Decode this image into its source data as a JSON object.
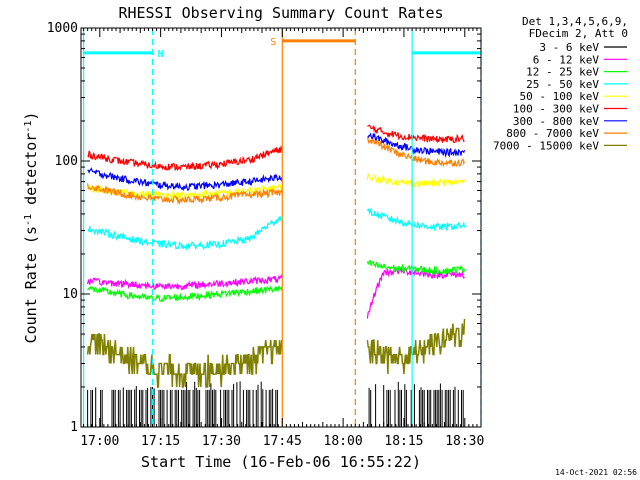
{
  "chart_data": {
    "type": "line",
    "title": "RHESSI Observing Summary Count Rates",
    "xlabel": "Start Time (16-Feb-06 16:55:22)",
    "ylabel_prefix": "Count Rate (s",
    "ylabel_sup1": "-1",
    "ylabel_mid": " detector",
    "ylabel_sup2": "-1",
    "ylabel_suffix": ")",
    "y_scale": "log",
    "ylim": [
      1,
      1000
    ],
    "xlim": [
      "16:55:22",
      "18:34:00"
    ],
    "x_ticks": [
      {
        "label": "17:00",
        "min": 1020
      },
      {
        "label": "17:15",
        "min": 1035
      },
      {
        "label": "17:30",
        "min": 1050
      },
      {
        "label": "17:45",
        "min": 1065
      },
      {
        "label": "18:00",
        "min": 1080
      },
      {
        "label": "18:15",
        "min": 1095
      },
      {
        "label": "18:30",
        "min": 1110
      }
    ],
    "y_ticks": [
      "1",
      "10",
      "100",
      "1000"
    ],
    "footer": "14-Oct-2021 02:56",
    "legend_header": [
      "Det 1,3,4,5,6,9,",
      "FDecim 2, Att 0"
    ],
    "series": [
      {
        "name": "3 - 6 keV",
        "color": "#000000",
        "style": "bars",
        "segments": [
          [
            1017,
            1064,
            1.3,
            1.9
          ],
          [
            1086,
            1110,
            1.3,
            1.9
          ]
        ]
      },
      {
        "name": "6 - 12 keV",
        "color": "#ff00ff",
        "segments": [
          [
            1017,
            1065,
            [
              12.5,
              12,
              11.5,
              11.5,
              12,
              12.5,
              13
            ]
          ],
          [
            1086,
            1110,
            [
              6.5,
              14.5,
              15,
              14.5,
              14,
              14,
              14
            ]
          ]
        ]
      },
      {
        "name": "12 - 25 keV",
        "color": "#00ff00",
        "segments": [
          [
            1017,
            1065,
            [
              11,
              10,
              9.2,
              9.5,
              10,
              10.5,
              11
            ]
          ],
          [
            1086,
            1110,
            [
              17,
              16,
              15.5,
              15.5,
              15,
              15,
              15.5
            ]
          ]
        ]
      },
      {
        "name": "25 - 50 keV",
        "color": "#00ffff",
        "segments": [
          [
            1017,
            1065,
            [
              31,
              27,
              24,
              23,
              23.5,
              26,
              38
            ]
          ],
          [
            1086,
            1110,
            [
              42,
              38,
              35,
              33,
              32,
              32,
              33
            ]
          ]
        ]
      },
      {
        "name": "50 - 100 keV",
        "color": "#ffff00",
        "segments": [
          [
            1017,
            1065,
            [
              62,
              58,
              56,
              55,
              57,
              59,
              64
            ]
          ],
          [
            1086,
            1110,
            [
              76,
              72,
              69,
              68,
              68,
              69,
              70
            ]
          ]
        ]
      },
      {
        "name": "100 - 300 keV",
        "color": "#ff0000",
        "segments": [
          [
            1017,
            1065,
            [
              112,
              100,
              92,
              90,
              94,
              102,
              124
            ]
          ],
          [
            1086,
            1110,
            [
              180,
              165,
              155,
              150,
              146,
              145,
              148
            ]
          ]
        ]
      },
      {
        "name": "300 - 800 keV",
        "color": "#0000ff",
        "segments": [
          [
            1017,
            1065,
            [
              84,
              74,
              67,
              64,
              66,
              70,
              76
            ]
          ],
          [
            1086,
            1110,
            [
              158,
              142,
              130,
              122,
              118,
              116,
              117
            ]
          ]
        ]
      },
      {
        "name": "800 - 7000 keV",
        "color": "#ff8000",
        "segments": [
          [
            1017,
            1065,
            [
              65,
              57,
              52,
              51,
              53,
              56,
              58
            ]
          ],
          [
            1086,
            1110,
            [
              148,
              128,
              113,
              103,
              98,
              97,
              98
            ]
          ]
        ]
      },
      {
        "name": "7000 - 15000 keV",
        "color": "#808000",
        "style": "noisy",
        "segments": [
          [
            1017,
            1065,
            [
              4.5,
              3.5,
              2.8,
              2.6,
              2.8,
              3.2,
              4
            ]
          ],
          [
            1086,
            1110,
            [
              4,
              3.5,
              3.2,
              3.6,
              4.2,
              4.8,
              5.3
            ]
          ]
        ]
      }
    ],
    "overlays": {
      "saa_flag": {
        "label": "S",
        "color": "#ff8000",
        "level": 800,
        "start": 1065,
        "end": 1083
      },
      "night_flag": {
        "label": "N",
        "color": "#00ffff",
        "level": 650,
        "segments": [
          [
            1016,
            1033
          ],
          [
            1097,
            1114
          ]
        ]
      },
      "orange_solid_min": [
        1065
      ],
      "orange_dashed_min": [
        1083
      ],
      "cyan_solid_min": [
        1016,
        1097
      ],
      "cyan_dashed_min": [
        1033,
        1114
      ]
    }
  }
}
